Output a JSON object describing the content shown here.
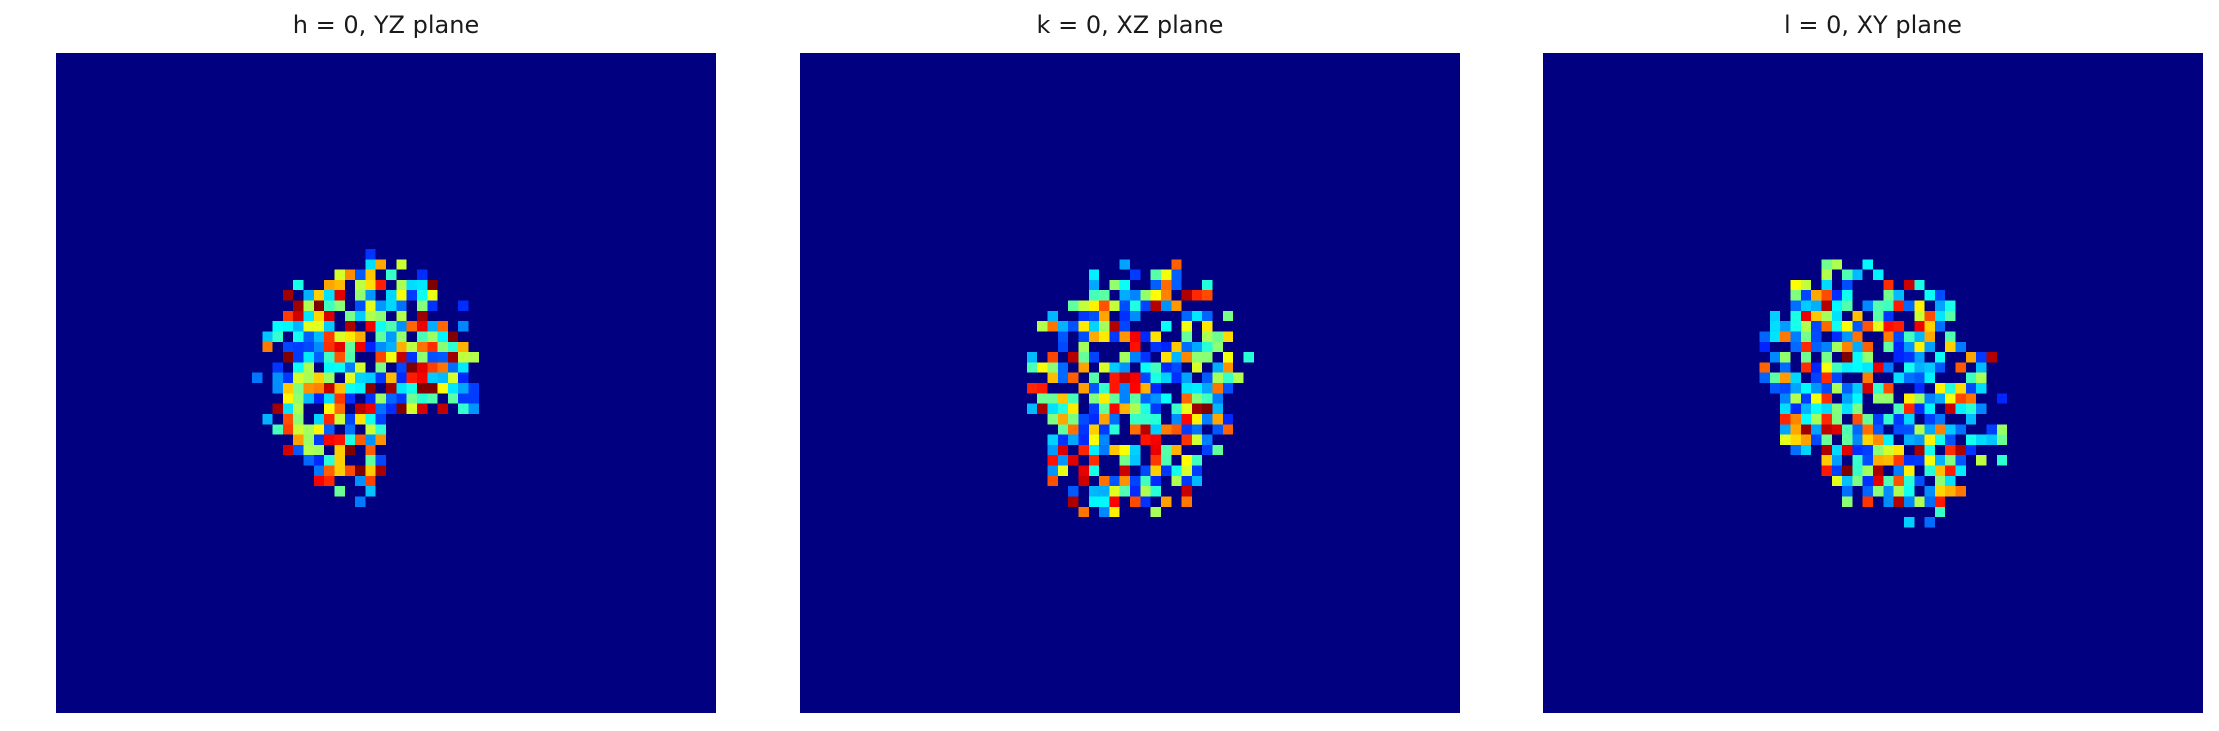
{
  "chart_data": [
    {
      "type": "heatmap",
      "title": "h = 0, YZ plane",
      "colormap": "jet",
      "grid": false,
      "axes_visible": false,
      "background_color": "#000080",
      "grid_size": 64,
      "blob": {
        "center": [
          31,
          30
        ],
        "radius_rows": 11,
        "radius_cols": 10,
        "tilt": 0.0,
        "notch": true,
        "seed": 11
      }
    },
    {
      "type": "heatmap",
      "title": "k = 0, XZ plane",
      "colormap": "jet",
      "grid": false,
      "axes_visible": false,
      "background_color": "#000080",
      "grid_size": 64,
      "blob": {
        "center": [
          32,
          32
        ],
        "radius_rows": 12,
        "radius_cols": 10,
        "tilt": 0.25,
        "notch": false,
        "seed": 23
      }
    },
    {
      "type": "heatmap",
      "title": "l = 0, XY plane",
      "colormap": "jet",
      "grid": false,
      "axes_visible": false,
      "background_color": "#000080",
      "grid_size": 64,
      "blob": {
        "center": [
          32,
          32
        ],
        "radius_rows": 13,
        "radius_cols": 10,
        "tilt": -0.7,
        "notch": false,
        "seed": 37
      }
    }
  ]
}
